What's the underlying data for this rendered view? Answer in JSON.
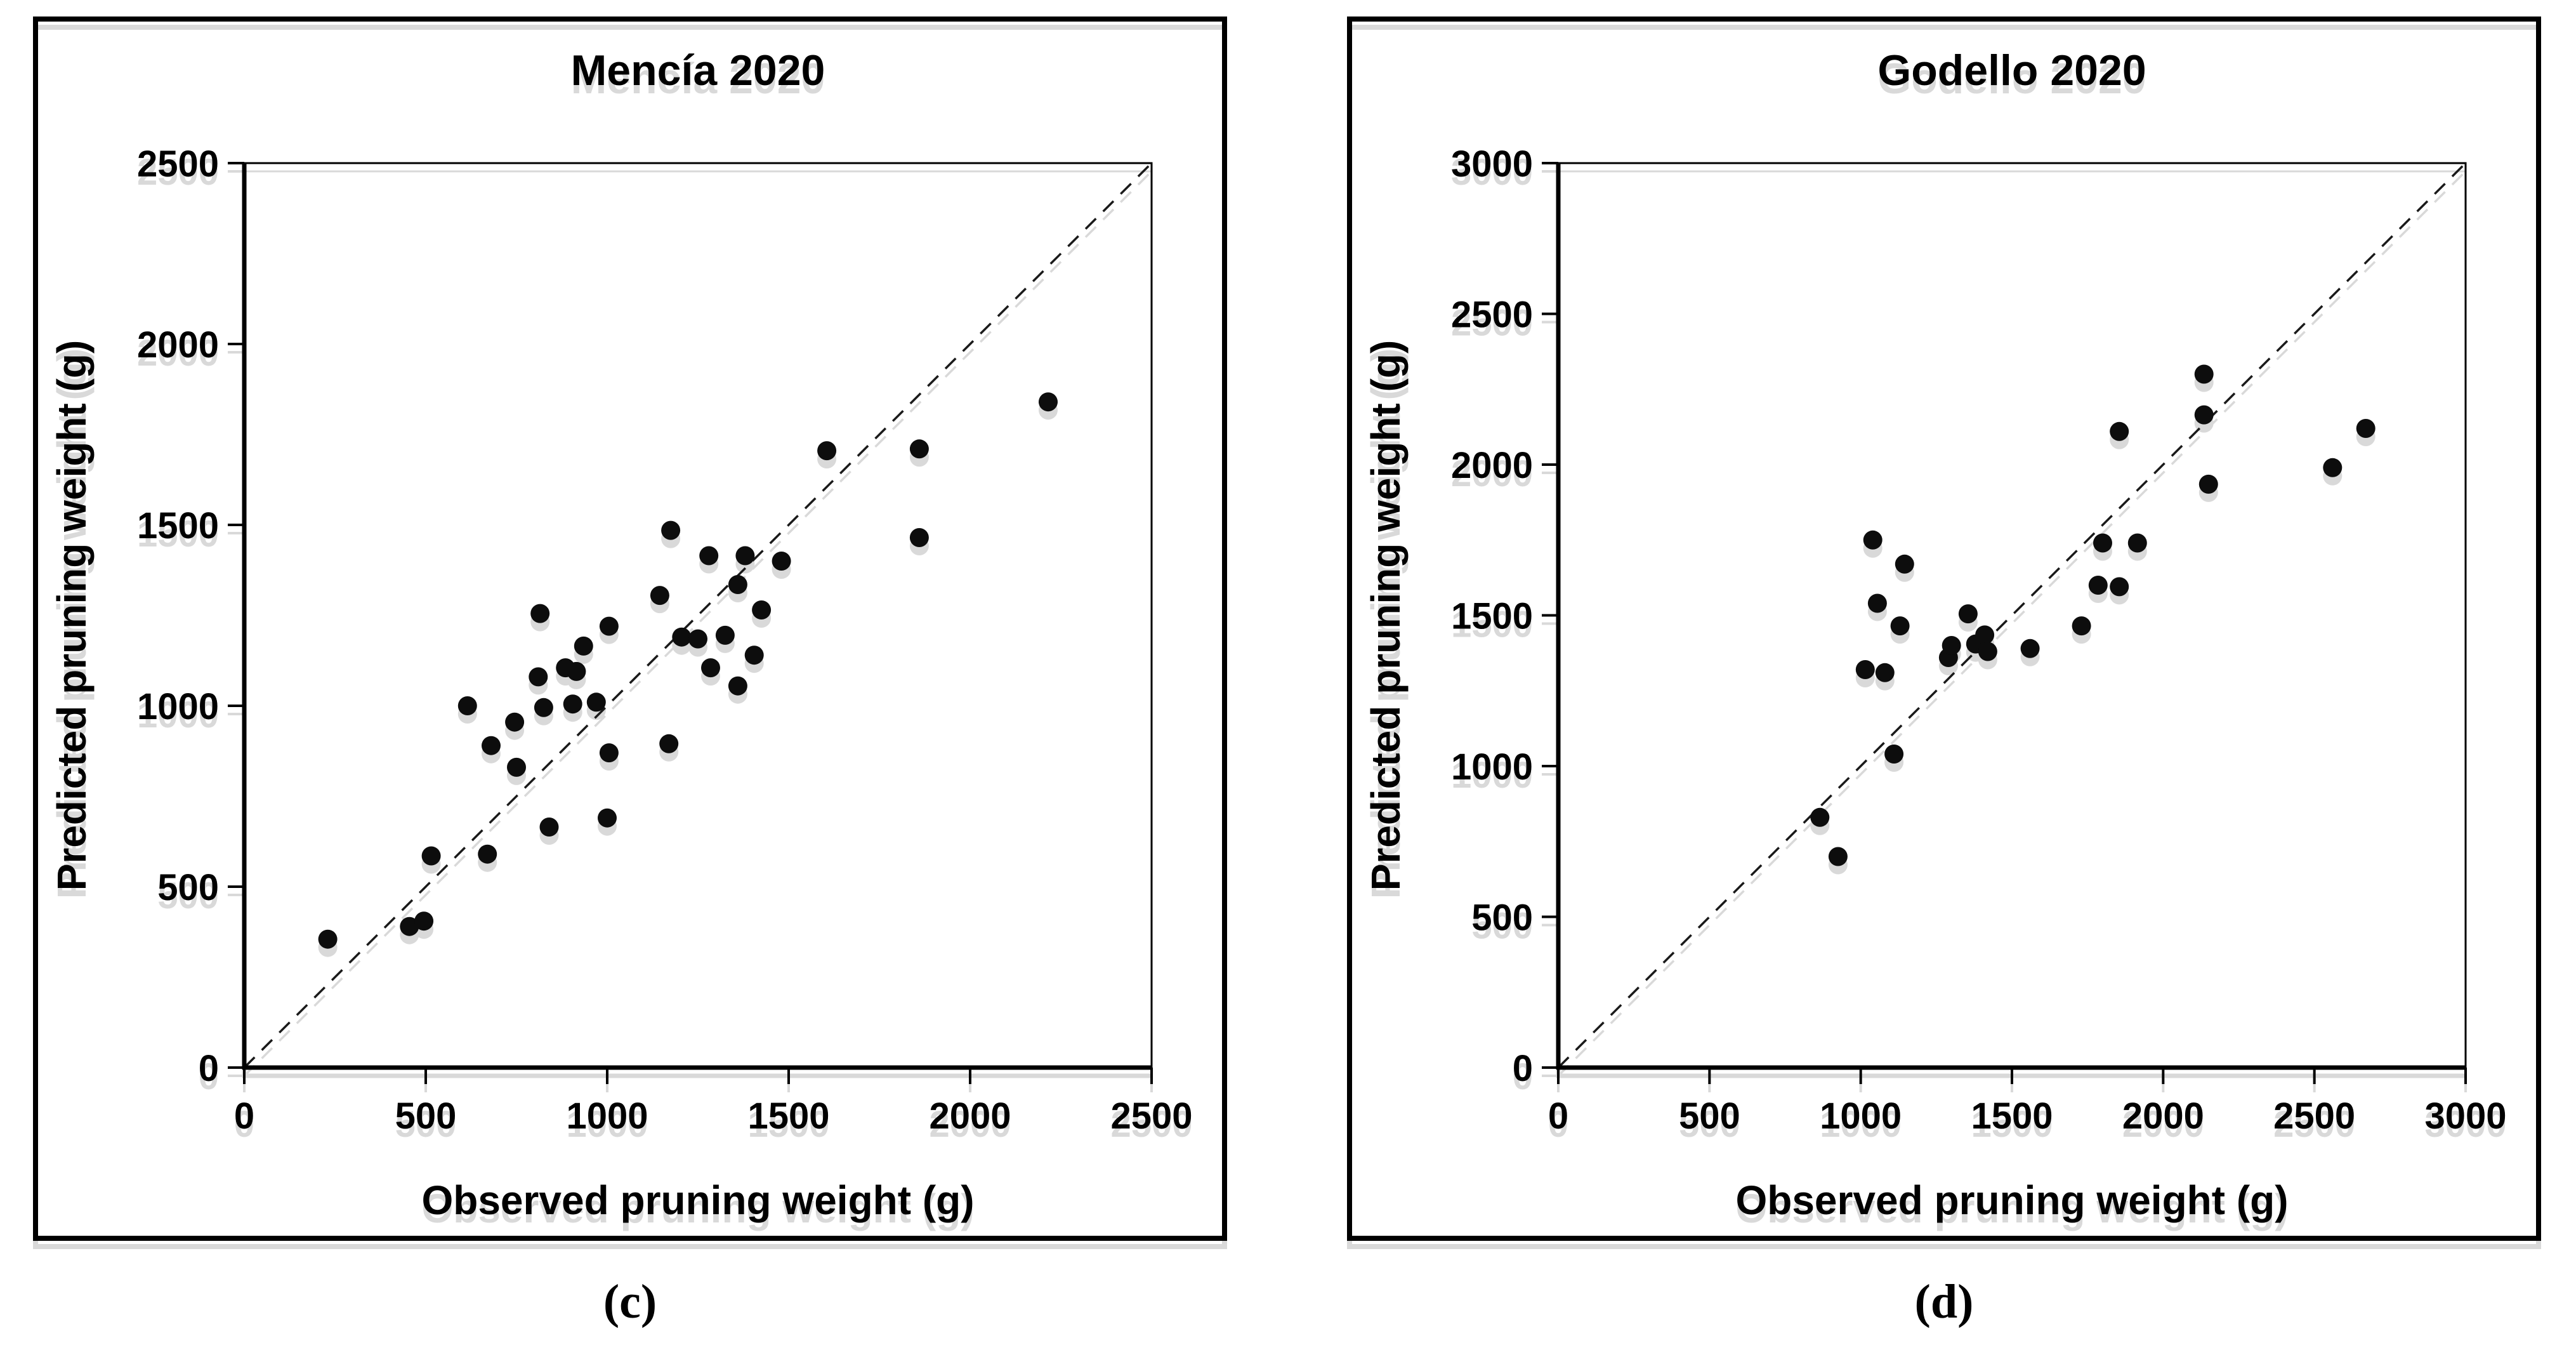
{
  "figure": {
    "background_color": "#ffffff",
    "marker_color": "#0d0d0d",
    "axis_color": "#000000",
    "shadow_color": "#d9d9d9"
  },
  "chart_data": [
    {
      "type": "scatter",
      "title": "Mencía 2020",
      "xlabel": "Observed pruning weight (g)",
      "ylabel": "Predicted pruning weight (g)",
      "caption": "(c)",
      "xlim": [
        0,
        2500
      ],
      "ylim": [
        0,
        2500
      ],
      "xticks": [
        0,
        500,
        1000,
        1500,
        2000,
        2500
      ],
      "yticks": [
        0,
        500,
        1000,
        1500,
        2000,
        2500
      ],
      "grid": false,
      "legend": false,
      "identity_line": true,
      "points": [
        [
          230,
          355
        ],
        [
          455,
          390
        ],
        [
          495,
          405
        ],
        [
          515,
          585
        ],
        [
          670,
          590
        ],
        [
          615,
          1000
        ],
        [
          680,
          890
        ],
        [
          745,
          955
        ],
        [
          750,
          830
        ],
        [
          810,
          1080
        ],
        [
          815,
          1255
        ],
        [
          825,
          995
        ],
        [
          840,
          665
        ],
        [
          885,
          1105
        ],
        [
          905,
          1005
        ],
        [
          915,
          1095
        ],
        [
          935,
          1165
        ],
        [
          970,
          1010
        ],
        [
          1000,
          690
        ],
        [
          1005,
          870
        ],
        [
          1005,
          1220
        ],
        [
          1145,
          1305
        ],
        [
          1170,
          895
        ],
        [
          1175,
          1485
        ],
        [
          1205,
          1190
        ],
        [
          1250,
          1185
        ],
        [
          1280,
          1415
        ],
        [
          1285,
          1105
        ],
        [
          1325,
          1195
        ],
        [
          1360,
          1055
        ],
        [
          1360,
          1335
        ],
        [
          1380,
          1415
        ],
        [
          1405,
          1140
        ],
        [
          1425,
          1265
        ],
        [
          1480,
          1400
        ],
        [
          1605,
          1705
        ],
        [
          1860,
          1465
        ],
        [
          1860,
          1710
        ],
        [
          2215,
          1840
        ]
      ]
    },
    {
      "type": "scatter",
      "title": "Godello 2020",
      "xlabel": "Observed pruning weight (g)",
      "ylabel": "Predicted pruning weight (g)",
      "caption": "(d)",
      "xlim": [
        0,
        3000
      ],
      "ylim": [
        0,
        3000
      ],
      "xticks": [
        0,
        500,
        1000,
        1500,
        2000,
        2500,
        3000
      ],
      "yticks": [
        0,
        500,
        1000,
        1500,
        2000,
        2500,
        3000
      ],
      "grid": false,
      "legend": false,
      "identity_line": true,
      "points": [
        [
          865,
          830
        ],
        [
          925,
          700
        ],
        [
          1015,
          1320
        ],
        [
          1040,
          1750
        ],
        [
          1055,
          1540
        ],
        [
          1080,
          1310
        ],
        [
          1110,
          1040
        ],
        [
          1130,
          1465
        ],
        [
          1145,
          1670
        ],
        [
          1290,
          1360
        ],
        [
          1300,
          1400
        ],
        [
          1355,
          1505
        ],
        [
          1380,
          1405
        ],
        [
          1410,
          1435
        ],
        [
          1420,
          1380
        ],
        [
          1560,
          1390
        ],
        [
          1730,
          1465
        ],
        [
          1785,
          1600
        ],
        [
          1800,
          1740
        ],
        [
          1855,
          1595
        ],
        [
          1855,
          2110
        ],
        [
          1915,
          1740
        ],
        [
          2135,
          2165
        ],
        [
          2135,
          2300
        ],
        [
          2150,
          1935
        ],
        [
          2560,
          1990
        ],
        [
          2670,
          2120
        ]
      ]
    }
  ]
}
